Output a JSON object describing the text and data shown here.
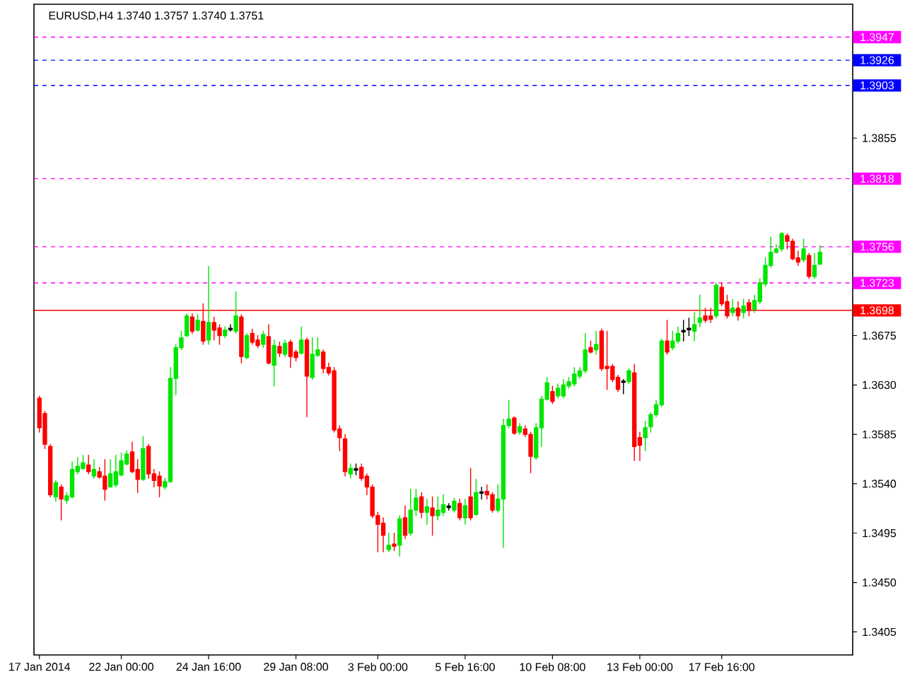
{
  "chart_data": {
    "type": "candlestick",
    "title": "EURUSD,H4  1.3740 1.3757 1.3740 1.3751",
    "categories": [
      "17 Jan 2014",
      null,
      null,
      null,
      null,
      null,
      null,
      null,
      null,
      null,
      null,
      null,
      null,
      null,
      null,
      "22 Jan 00:00",
      null,
      null,
      null,
      null,
      null,
      null,
      null,
      null,
      null,
      null,
      null,
      null,
      null,
      null,
      null,
      "24 Jan 16:00",
      null,
      null,
      null,
      null,
      null,
      null,
      null,
      null,
      null,
      null,
      null,
      null,
      null,
      null,
      null,
      "29 Jan 08:00",
      null,
      null,
      null,
      null,
      null,
      null,
      null,
      null,
      null,
      null,
      null,
      null,
      null,
      null,
      "3 Feb 00:00",
      null,
      null,
      null,
      null,
      null,
      null,
      null,
      null,
      null,
      null,
      null,
      null,
      null,
      null,
      null,
      "5 Feb 16:00",
      null,
      null,
      null,
      null,
      null,
      null,
      null,
      null,
      null,
      null,
      null,
      null,
      null,
      null,
      null,
      "10 Feb 08:00",
      null,
      null,
      null,
      null,
      null,
      null,
      null,
      null,
      null,
      null,
      null,
      null,
      null,
      null,
      null,
      "13 Feb 00:00",
      null,
      null,
      null,
      null,
      null,
      null,
      null,
      null,
      null,
      null,
      null,
      null,
      null,
      null,
      "17 Feb 16:00",
      null,
      null,
      null,
      null,
      null,
      null,
      null,
      null,
      null,
      null,
      null,
      null,
      null,
      null,
      null,
      null,
      null,
      null
    ],
    "ohlc": [
      [
        1.3618,
        1.362,
        1.3587,
        1.3591
      ],
      [
        1.3604,
        1.3606,
        1.3572,
        1.3576
      ],
      [
        1.3574,
        1.3576,
        1.3528,
        1.353
      ],
      [
        1.3528,
        1.3543,
        1.3524,
        1.3541
      ],
      [
        1.3537,
        1.3539,
        1.3507,
        1.3526
      ],
      [
        1.3525,
        1.3532,
        1.3522,
        1.3529
      ],
      [
        1.3528,
        1.356,
        1.3527,
        1.3553
      ],
      [
        1.3551,
        1.3564,
        1.3549,
        1.3556
      ],
      [
        1.3554,
        1.3566,
        1.3553,
        1.3559
      ],
      [
        1.3557,
        1.3566,
        1.3549,
        1.3551
      ],
      [
        1.3547,
        1.3562,
        1.3545,
        1.3553
      ],
      [
        1.3551,
        1.3555,
        1.3545,
        1.3546
      ],
      [
        1.3547,
        1.3562,
        1.3525,
        1.3535
      ],
      [
        1.3537,
        1.3562,
        1.3537,
        1.3549
      ],
      [
        1.3539,
        1.3566,
        1.3537,
        1.3551
      ],
      [
        1.3548,
        1.3568,
        1.3547,
        1.3561
      ],
      [
        1.3558,
        1.357,
        1.3557,
        1.3567
      ],
      [
        1.3569,
        1.3578,
        1.355,
        1.3551
      ],
      [
        1.3553,
        1.3562,
        1.3532,
        1.3544
      ],
      [
        1.3544,
        1.3583,
        1.3543,
        1.3572
      ],
      [
        1.3574,
        1.3576,
        1.3545,
        1.3549
      ],
      [
        1.3549,
        1.3553,
        1.3537,
        1.3543
      ],
      [
        1.3547,
        1.3551,
        1.3528,
        1.3538
      ],
      [
        1.3537,
        1.3545,
        1.3535,
        1.3542
      ],
      [
        1.3542,
        1.3646,
        1.3541,
        1.3636
      ],
      [
        1.3636,
        1.3667,
        1.3621,
        1.3664
      ],
      [
        1.3664,
        1.3679,
        1.3662,
        1.3673
      ],
      [
        1.3675,
        1.3695,
        1.3674,
        1.3693
      ],
      [
        1.3692,
        1.3695,
        1.3677,
        1.3679
      ],
      [
        1.368,
        1.3694,
        1.3679,
        1.3689
      ],
      [
        1.3688,
        1.3704,
        1.3667,
        1.367
      ],
      [
        1.3671,
        1.3738,
        1.3667,
        1.3687
      ],
      [
        1.3687,
        1.3692,
        1.3671,
        1.368
      ],
      [
        1.3682,
        1.3685,
        1.3667,
        1.3675
      ],
      [
        1.3675,
        1.3683,
        1.3673,
        1.368
      ],
      [
        1.3681,
        1.3685,
        1.3679,
        1.3681
      ],
      [
        1.3679,
        1.3715,
        1.3677,
        1.3693
      ],
      [
        1.3692,
        1.3694,
        1.365,
        1.3656
      ],
      [
        1.3655,
        1.3677,
        1.3654,
        1.3675
      ],
      [
        1.3677,
        1.3681,
        1.3667,
        1.3669
      ],
      [
        1.3671,
        1.3675,
        1.3664,
        1.3666
      ],
      [
        1.3667,
        1.3679,
        1.3664,
        1.3676
      ],
      [
        1.3674,
        1.3685,
        1.3649,
        1.365
      ],
      [
        1.3648,
        1.3671,
        1.3629,
        1.3666
      ],
      [
        1.3665,
        1.3669,
        1.3656,
        1.3659
      ],
      [
        1.3658,
        1.3671,
        1.3656,
        1.3668
      ],
      [
        1.3669,
        1.3671,
        1.3646,
        1.3656
      ],
      [
        1.366,
        1.3662,
        1.3652,
        1.3655
      ],
      [
        1.3659,
        1.3683,
        1.3658,
        1.3671
      ],
      [
        1.3671,
        1.3673,
        1.3601,
        1.3638
      ],
      [
        1.3637,
        1.3673,
        1.3635,
        1.3658
      ],
      [
        1.3657,
        1.3673,
        1.3656,
        1.3662
      ],
      [
        1.366,
        1.3662,
        1.3641,
        1.3645
      ],
      [
        1.3646,
        1.365,
        1.3639,
        1.3641
      ],
      [
        1.3643,
        1.3646,
        1.3587,
        1.3589
      ],
      [
        1.359,
        1.3593,
        1.357,
        1.3582
      ],
      [
        1.3581,
        1.3585,
        1.3547,
        1.3551
      ],
      [
        1.3549,
        1.3558,
        1.3545,
        1.3554
      ],
      [
        1.3553,
        1.3558,
        1.3548,
        1.3553
      ],
      [
        1.3555,
        1.3558,
        1.3543,
        1.3545
      ],
      [
        1.3547,
        1.3549,
        1.353,
        1.3537
      ],
      [
        1.3537,
        1.3539,
        1.3509,
        1.3511
      ],
      [
        1.3511,
        1.3514,
        1.3478,
        1.3503
      ],
      [
        1.3504,
        1.3509,
        1.3478,
        1.3493
      ],
      [
        1.348,
        1.3495,
        1.3478,
        1.3484
      ],
      [
        1.3485,
        1.3495,
        1.3479,
        1.3483
      ],
      [
        1.3484,
        1.3511,
        1.3474,
        1.3508
      ],
      [
        1.3509,
        1.352,
        1.349,
        1.3493
      ],
      [
        1.3495,
        1.3535,
        1.3493,
        1.3516
      ],
      [
        1.3516,
        1.3535,
        1.3511,
        1.3527
      ],
      [
        1.3528,
        1.3532,
        1.3509,
        1.3514
      ],
      [
        1.3514,
        1.3526,
        1.3503,
        1.3519
      ],
      [
        1.3518,
        1.3528,
        1.3493,
        1.3511
      ],
      [
        1.3511,
        1.3528,
        1.3507,
        1.3516
      ],
      [
        1.3514,
        1.353,
        1.3511,
        1.3521
      ],
      [
        1.3519,
        1.3522,
        1.3516,
        1.3519
      ],
      [
        1.3516,
        1.3527,
        1.3514,
        1.3524
      ],
      [
        1.3522,
        1.3526,
        1.3507,
        1.3509
      ],
      [
        1.3509,
        1.3526,
        1.3503,
        1.352
      ],
      [
        1.3528,
        1.3554,
        1.3507,
        1.3509
      ],
      [
        1.3512,
        1.3544,
        1.3511,
        1.3532
      ],
      [
        1.3532,
        1.3537,
        1.3526,
        1.3532
      ],
      [
        1.3533,
        1.3539,
        1.3526,
        1.353
      ],
      [
        1.353,
        1.3532,
        1.3514,
        1.3516
      ],
      [
        1.3516,
        1.3539,
        1.3514,
        1.3526
      ],
      [
        1.3526,
        1.3599,
        1.3482,
        1.3593
      ],
      [
        1.3593,
        1.3616,
        1.3591,
        1.3599
      ],
      [
        1.36,
        1.3601,
        1.3585,
        1.3586
      ],
      [
        1.3587,
        1.3595,
        1.3585,
        1.3592
      ],
      [
        1.359,
        1.3593,
        1.3583,
        1.3585
      ],
      [
        1.3585,
        1.3587,
        1.355,
        1.3565
      ],
      [
        1.3564,
        1.3595,
        1.3562,
        1.3591
      ],
      [
        1.3591,
        1.362,
        1.3574,
        1.3617
      ],
      [
        1.3617,
        1.3637,
        1.3616,
        1.3632
      ],
      [
        1.3624,
        1.3629,
        1.3613,
        1.3615
      ],
      [
        1.362,
        1.3631,
        1.3618,
        1.3627
      ],
      [
        1.362,
        1.3635,
        1.3618,
        1.363
      ],
      [
        1.3629,
        1.3637,
        1.3627,
        1.3633
      ],
      [
        1.3631,
        1.3646,
        1.3629,
        1.364
      ],
      [
        1.3638,
        1.3646,
        1.3636,
        1.3643
      ],
      [
        1.3643,
        1.3677,
        1.3641,
        1.3662
      ],
      [
        1.3664,
        1.367,
        1.3659,
        1.366
      ],
      [
        1.3662,
        1.3679,
        1.3658,
        1.3667
      ],
      [
        1.3679,
        1.3681,
        1.3643,
        1.3645
      ],
      [
        1.3647,
        1.3679,
        1.3626,
        1.3645
      ],
      [
        1.3647,
        1.3649,
        1.3633,
        1.3635
      ],
      [
        1.3637,
        1.3639,
        1.3624,
        1.3626
      ],
      [
        1.3633,
        1.3635,
        1.3622,
        1.3633
      ],
      [
        1.3633,
        1.3645,
        1.3631,
        1.3643
      ],
      [
        1.3641,
        1.3649,
        1.3561,
        1.3574
      ],
      [
        1.3582,
        1.3587,
        1.3561,
        1.3575
      ],
      [
        1.3582,
        1.3597,
        1.357,
        1.3591
      ],
      [
        1.3592,
        1.3605,
        1.3587,
        1.3603
      ],
      [
        1.3603,
        1.3616,
        1.3601,
        1.3612
      ],
      [
        1.3612,
        1.3672,
        1.361,
        1.367
      ],
      [
        1.367,
        1.3689,
        1.3658,
        1.366
      ],
      [
        1.3664,
        1.3679,
        1.3662,
        1.367
      ],
      [
        1.367,
        1.3683,
        1.3668,
        1.3677
      ],
      [
        1.3679,
        1.3689,
        1.367,
        1.3679
      ],
      [
        1.3681,
        1.3691,
        1.3675,
        1.3681
      ],
      [
        1.3679,
        1.3696,
        1.367,
        1.3685
      ],
      [
        1.3687,
        1.3712,
        1.3683,
        1.3691
      ],
      [
        1.3693,
        1.37,
        1.3687,
        1.3689
      ],
      [
        1.3693,
        1.37,
        1.3687,
        1.369
      ],
      [
        1.3693,
        1.3723,
        1.3691,
        1.3721
      ],
      [
        1.3719,
        1.3723,
        1.3702,
        1.3704
      ],
      [
        1.3706,
        1.3712,
        1.3691,
        1.3693
      ],
      [
        1.3696,
        1.3708,
        1.3693,
        1.37
      ],
      [
        1.37,
        1.3706,
        1.3689,
        1.3693
      ],
      [
        1.3696,
        1.3708,
        1.3691,
        1.3702
      ],
      [
        1.3705,
        1.3708,
        1.3693,
        1.3698
      ],
      [
        1.3699,
        1.3712,
        1.3696,
        1.3707
      ],
      [
        1.3706,
        1.3727,
        1.3704,
        1.3723
      ],
      [
        1.3722,
        1.3746,
        1.372,
        1.3739
      ],
      [
        1.3739,
        1.3765,
        1.3737,
        1.3751
      ],
      [
        1.3751,
        1.3758,
        1.375,
        1.3754
      ],
      [
        1.3754,
        1.3769,
        1.3752,
        1.3768
      ],
      [
        1.3766,
        1.3768,
        1.3754,
        1.3761
      ],
      [
        1.3761,
        1.3763,
        1.3744,
        1.3745
      ],
      [
        1.3746,
        1.3752,
        1.3739,
        1.3742
      ],
      [
        1.3744,
        1.3763,
        1.3742,
        1.3754
      ],
      [
        1.3748,
        1.375,
        1.3727,
        1.3729
      ],
      [
        1.3729,
        1.375,
        1.3727,
        1.3739
      ],
      [
        1.374,
        1.3757,
        1.374,
        1.3751
      ]
    ],
    "ylim": [
      1.3384,
      1.3977
    ],
    "yticks": [
      1.3405,
      {
        "value": 1.345,
        "label": "1.3450"
      },
      1.3495,
      {
        "value": 1.354,
        "label": "1.3540"
      },
      1.3585,
      {
        "value": 1.363,
        "label": "1.3630"
      },
      1.3675,
      1.3855
    ],
    "ref_lines": [
      {
        "axis": "y",
        "value": 1.3947,
        "label": "1.3947",
        "color": "#ff00ff",
        "line_style": "dashed"
      },
      {
        "axis": "y",
        "value": 1.3926,
        "label": "1.3926",
        "color": "#0000ff",
        "line_style": "dashed"
      },
      {
        "axis": "y",
        "value": 1.3903,
        "label": "1.3903",
        "color": "#0000ff",
        "line_style": "dashed"
      },
      {
        "axis": "y",
        "value": 1.3818,
        "label": "1.3818",
        "color": "#ff00ff",
        "line_style": "dashed"
      },
      {
        "axis": "y",
        "value": 1.3756,
        "label": "1.3756",
        "color": "#ff00ff",
        "line_style": "dashed"
      },
      {
        "axis": "y",
        "value": 1.3723,
        "label": "1.3723",
        "color": "#ff00ff",
        "line_style": "dashed"
      },
      {
        "axis": "y",
        "value": 1.3698,
        "label": "1.3698",
        "color": "#ff0000",
        "line_style": "solid"
      }
    ]
  }
}
